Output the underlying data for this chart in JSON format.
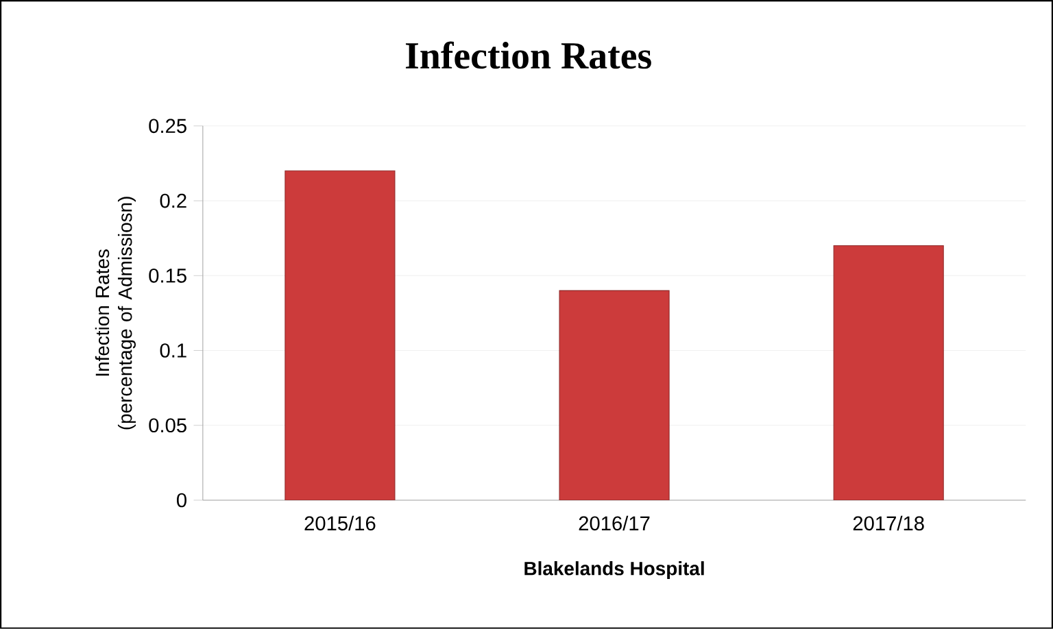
{
  "chart_data": {
    "type": "bar",
    "title": "Infection Rates",
    "xlabel": "Blakelands Hospital",
    "ylabel": "Infection Rates (percentage of Admissiosn)",
    "categories": [
      "2015/16",
      "2016/17",
      "2017/18"
    ],
    "values": [
      0.22,
      0.14,
      0.17
    ],
    "color": "#cc3b3b",
    "ylim": [
      0,
      0.25
    ],
    "yticks": [
      0,
      0.05,
      0.1,
      0.15,
      0.2,
      0.25
    ],
    "grid": "y"
  }
}
